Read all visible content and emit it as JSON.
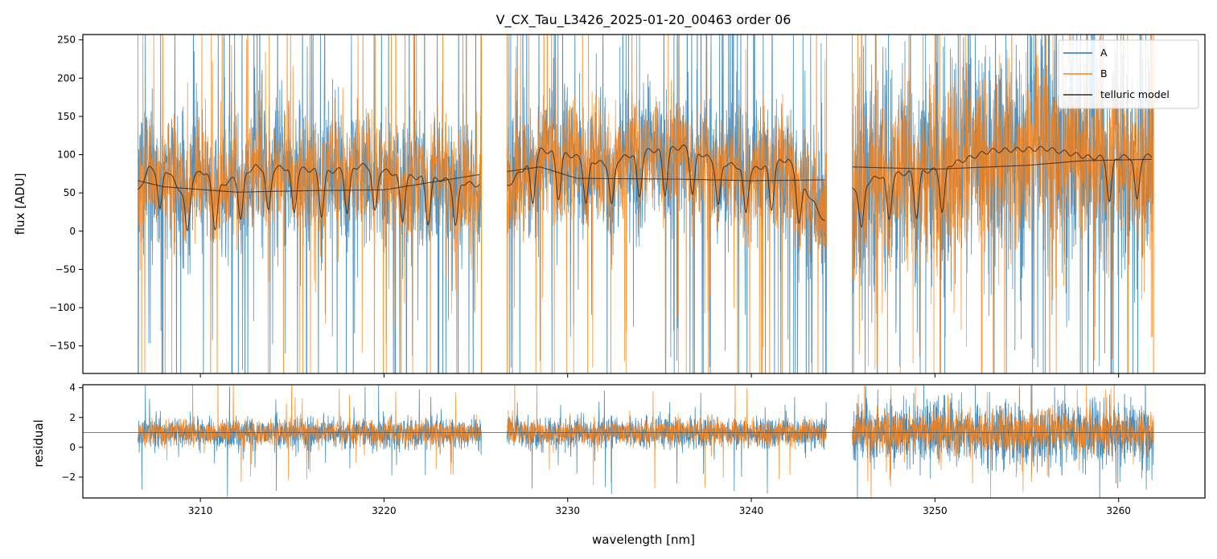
{
  "chart_data": [
    {
      "panel": "top",
      "type": "line",
      "title": "V_CX_Tau_L3426_2025-01-20_00463  order 06",
      "xlabel": "",
      "ylabel": "flux [ADU]",
      "xlim": [
        3203.6,
        3264.7
      ],
      "ylim": [
        -186,
        257
      ],
      "xticks": [
        3210,
        3220,
        3230,
        3240,
        3250,
        3260
      ],
      "yticks": [
        -150,
        -100,
        -50,
        0,
        50,
        100,
        150,
        200,
        250
      ],
      "ytick_labels": [
        "−150",
        "−100",
        "−50",
        "0",
        "50",
        "100",
        "150",
        "200",
        "250"
      ],
      "segments": [
        [
          3206.6,
          3225.3
        ],
        [
          3226.7,
          3244.1
        ],
        [
          3245.5,
          3261.9
        ]
      ],
      "legend_position": "top-right",
      "series": [
        {
          "name": "A",
          "color": "#1f77b4",
          "kind": "noisy spectrum",
          "mean": 65,
          "spread": 60,
          "sparkle": 0.07
        },
        {
          "name": "B",
          "color": "#ff7f0e",
          "kind": "noisy spectrum",
          "mean": 72,
          "spread": 50,
          "sparkle": 0.05
        },
        {
          "name": "telluric model",
          "color": "#3a2a20",
          "kind": "smooth model",
          "continuum_segments": [
            [
              [
                3206.6,
                66
              ],
              [
                3208.0,
                58
              ],
              [
                3212.0,
                51
              ],
              [
                3216.0,
                53
              ],
              [
                3220.0,
                54
              ],
              [
                3225.2,
                74
              ]
            ],
            [
              [
                3226.7,
                78
              ],
              [
                3228.5,
                84
              ],
              [
                3230.5,
                69
              ],
              [
                3236.0,
                68
              ],
              [
                3240.0,
                66
              ],
              [
                3244.0,
                67
              ]
            ],
            [
              [
                3245.5,
                84
              ],
              [
                3250.0,
                81
              ],
              [
                3255.0,
                86
              ],
              [
                3258.0,
                92
              ],
              [
                3261.8,
                94
              ]
            ]
          ],
          "absorption_segments": [
            [
              [
                3206.6,
                52
              ],
              [
                3207.2,
                82
              ],
              [
                3208.0,
                86
              ],
              [
                3209.0,
                50
              ],
              [
                3210.0,
                80
              ],
              [
                3211.0,
                58
              ],
              [
                3213.0,
                84
              ],
              [
                3215.0,
                82
              ],
              [
                3217.0,
                78
              ],
              [
                3219.0,
                86
              ],
              [
                3221.0,
                72
              ],
              [
                3223.0,
                68
              ],
              [
                3225.2,
                60
              ]
            ],
            [
              [
                3226.7,
                58
              ],
              [
                3228.5,
                106
              ],
              [
                3230.0,
                100
              ],
              [
                3232.0,
                88
              ],
              [
                3234.0,
                104
              ],
              [
                3236.5,
                110
              ],
              [
                3238.0,
                92
              ],
              [
                3240.0,
                80
              ],
              [
                3242.0,
                94
              ],
              [
                3244.0,
                12
              ]
            ],
            [
              [
                3245.5,
                55
              ],
              [
                3247.0,
                72
              ],
              [
                3250.0,
                80
              ],
              [
                3253.0,
                105
              ],
              [
                3256.0,
                108
              ],
              [
                3258.5,
                96
              ],
              [
                3261.8,
                98
              ]
            ]
          ],
          "deep_lines_nm": [
            3207.8,
            3209.3,
            3210.8,
            3212.2,
            3213.7,
            3215.1,
            3216.6,
            3218.0,
            3219.5,
            3221.0,
            3222.4,
            3223.9,
            3228.1,
            3229.5,
            3231.0,
            3232.4,
            3233.9,
            3235.3,
            3236.8,
            3238.2,
            3239.7,
            3241.1,
            3242.6,
            3246.0,
            3247.5,
            3249.0,
            3250.4,
            3259.5,
            3261.0
          ]
        }
      ]
    },
    {
      "panel": "bottom",
      "type": "line",
      "title": "",
      "xlabel": "wavelength [nm]",
      "ylabel": "residual",
      "xlim": [
        3203.6,
        3264.7
      ],
      "ylim": [
        -3.4,
        4.2
      ],
      "xticks": [
        3210,
        3220,
        3230,
        3240,
        3250,
        3260
      ],
      "xtick_labels": [
        "3210",
        "3220",
        "3230",
        "3240",
        "3250",
        "3260"
      ],
      "yticks": [
        -2,
        0,
        2,
        4
      ],
      "ytick_labels": [
        "−2",
        "0",
        "2",
        "4"
      ],
      "reference_line": 1.0,
      "series": [
        {
          "name": "A",
          "color": "#1f77b4",
          "kind": "noisy residual",
          "mean": 0.95,
          "spread": 0.75,
          "spread_last_segment": 1.5
        },
        {
          "name": "B",
          "color": "#ff7f0e",
          "kind": "noisy residual",
          "mean": 1.0,
          "spread": 0.6,
          "spread_last_segment": 1.0
        }
      ]
    }
  ]
}
